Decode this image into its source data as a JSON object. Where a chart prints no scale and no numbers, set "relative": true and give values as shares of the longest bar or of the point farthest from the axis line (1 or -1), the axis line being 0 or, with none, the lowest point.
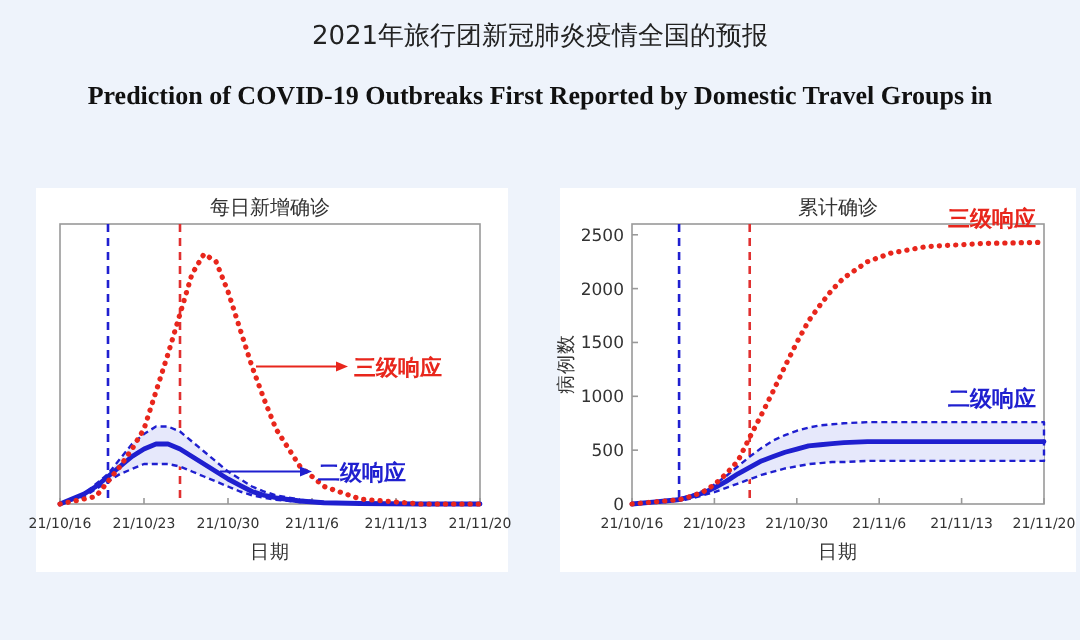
{
  "chart_data": [
    {
      "type": "other",
      "title": "2021年旅行团新冠肺炎疫情全国的预报",
      "subtitle": "Prediction of COVID-19 Outbreaks First Reported by Domestic Travel Groups in"
    },
    {
      "type": "line",
      "title": "每日新增确诊",
      "xlabel": "日期",
      "relative": true,
      "tick_labels": "x",
      "legend": "right",
      "x": [
        "2021-10-16",
        "2021-10-18",
        "2021-10-19",
        "2021-10-20",
        "2021-10-21",
        "2021-10-22",
        "2021-10-23",
        "2021-10-24",
        "2021-10-25",
        "2021-10-26",
        "2021-10-27",
        "2021-10-28",
        "2021-10-29",
        "2021-10-30",
        "2021-10-31",
        "2021-11-01",
        "2021-11-02",
        "2021-11-03",
        "2021-11-05",
        "2021-11-07",
        "2021-11-10",
        "2021-11-15",
        "2021-11-20"
      ],
      "xlim": [
        "2021-10-16",
        "2021-11-20"
      ],
      "xticks": [
        {
          "value": "2021-10-16",
          "label": "21/10/16"
        },
        {
          "value": "2021-10-23",
          "label": "21/10/23"
        },
        {
          "value": "2021-10-30",
          "label": "21/10/30"
        },
        {
          "value": "2021-11-06",
          "label": "21/11/6"
        },
        {
          "value": "2021-11-13",
          "label": "21/11/13"
        },
        {
          "value": "2021-11-20",
          "label": "21/11/20"
        }
      ],
      "ref_lines": [
        {
          "axis": "x",
          "value": "2021-10-20",
          "color": "#2020d0",
          "line_style": "dashed"
        },
        {
          "axis": "x",
          "value": "2021-10-26",
          "color": "#e03030",
          "line_style": "dashed"
        }
      ],
      "series": [
        {
          "name": "二级响应",
          "color": "#1f1fcf",
          "line_style": "solid",
          "values": [
            0,
            0.04,
            0.07,
            0.11,
            0.15,
            0.19,
            0.22,
            0.24,
            0.24,
            0.22,
            0.19,
            0.16,
            0.13,
            0.1,
            0.075,
            0.05,
            0.035,
            0.025,
            0.012,
            0.005,
            0.002,
            0,
            0
          ],
          "lower": [
            0,
            0.03,
            0.06,
            0.09,
            0.12,
            0.14,
            0.16,
            0.16,
            0.16,
            0.15,
            0.13,
            0.11,
            0.09,
            0.07,
            0.05,
            0.035,
            0.025,
            0.017,
            0.008,
            0.003,
            0.001,
            0,
            0
          ],
          "upper": [
            0,
            0.04,
            0.08,
            0.12,
            0.18,
            0.24,
            0.28,
            0.31,
            0.31,
            0.29,
            0.25,
            0.21,
            0.17,
            0.13,
            0.1,
            0.07,
            0.05,
            0.035,
            0.017,
            0.007,
            0.003,
            0,
            0
          ]
        },
        {
          "name": "三级响应",
          "color": "#e8261c",
          "line_style": "dotted",
          "values": [
            0,
            0.02,
            0.03,
            0.09,
            0.15,
            0.22,
            0.3,
            0.45,
            0.6,
            0.76,
            0.92,
            1.0,
            0.97,
            0.85,
            0.7,
            0.55,
            0.42,
            0.3,
            0.15,
            0.07,
            0.02,
            0,
            0
          ]
        }
      ]
    },
    {
      "type": "line",
      "title": "累计确诊",
      "xlabel": "日期",
      "ylabel": "病例数",
      "x": [
        "2021-10-16",
        "2021-10-18",
        "2021-10-19",
        "2021-10-20",
        "2021-10-21",
        "2021-10-22",
        "2021-10-23",
        "2021-10-24",
        "2021-10-25",
        "2021-10-26",
        "2021-10-27",
        "2021-10-28",
        "2021-10-29",
        "2021-10-30",
        "2021-10-31",
        "2021-11-01",
        "2021-11-02",
        "2021-11-03",
        "2021-11-05",
        "2021-11-07",
        "2021-11-10",
        "2021-11-15",
        "2021-11-20"
      ],
      "xlim": [
        "2021-10-16",
        "2021-11-20"
      ],
      "xticks": [
        {
          "value": "2021-10-16",
          "label": "21/10/16"
        },
        {
          "value": "2021-10-23",
          "label": "21/10/23"
        },
        {
          "value": "2021-10-30",
          "label": "21/10/30"
        },
        {
          "value": "2021-11-06",
          "label": "21/11/6"
        },
        {
          "value": "2021-11-13",
          "label": "21/11/13"
        },
        {
          "value": "2021-11-20",
          "label": "21/11/20"
        }
      ],
      "ylim": [
        0,
        2600
      ],
      "yticks": [
        0,
        500,
        1000,
        1500,
        2000,
        2500
      ],
      "ref_lines": [
        {
          "axis": "x",
          "value": "2021-10-20",
          "color": "#2020d0",
          "line_style": "dashed"
        },
        {
          "axis": "x",
          "value": "2021-10-26",
          "color": "#e03030",
          "line_style": "dashed"
        }
      ],
      "series": [
        {
          "name": "二级响应",
          "color": "#1f1fcf",
          "line_style": "solid",
          "values": [
            0,
            20,
            30,
            40,
            70,
            100,
            150,
            210,
            280,
            340,
            400,
            440,
            480,
            510,
            540,
            550,
            560,
            570,
            580,
            580,
            580,
            580,
            580
          ],
          "lower": [
            0,
            10,
            20,
            30,
            50,
            80,
            110,
            150,
            190,
            230,
            270,
            300,
            330,
            350,
            370,
            380,
            390,
            390,
            400,
            400,
            400,
            400,
            400
          ],
          "upper": [
            0,
            20,
            30,
            50,
            80,
            120,
            180,
            260,
            350,
            440,
            520,
            590,
            640,
            680,
            710,
            730,
            740,
            750,
            760,
            760,
            760,
            760,
            760
          ]
        },
        {
          "name": "三级响应",
          "color": "#e8261c",
          "line_style": "dotted",
          "values": [
            0,
            20,
            30,
            40,
            70,
            110,
            180,
            280,
            400,
            620,
            830,
            1050,
            1280,
            1500,
            1700,
            1850,
            1990,
            2100,
            2250,
            2330,
            2390,
            2420,
            2430
          ]
        }
      ]
    }
  ]
}
